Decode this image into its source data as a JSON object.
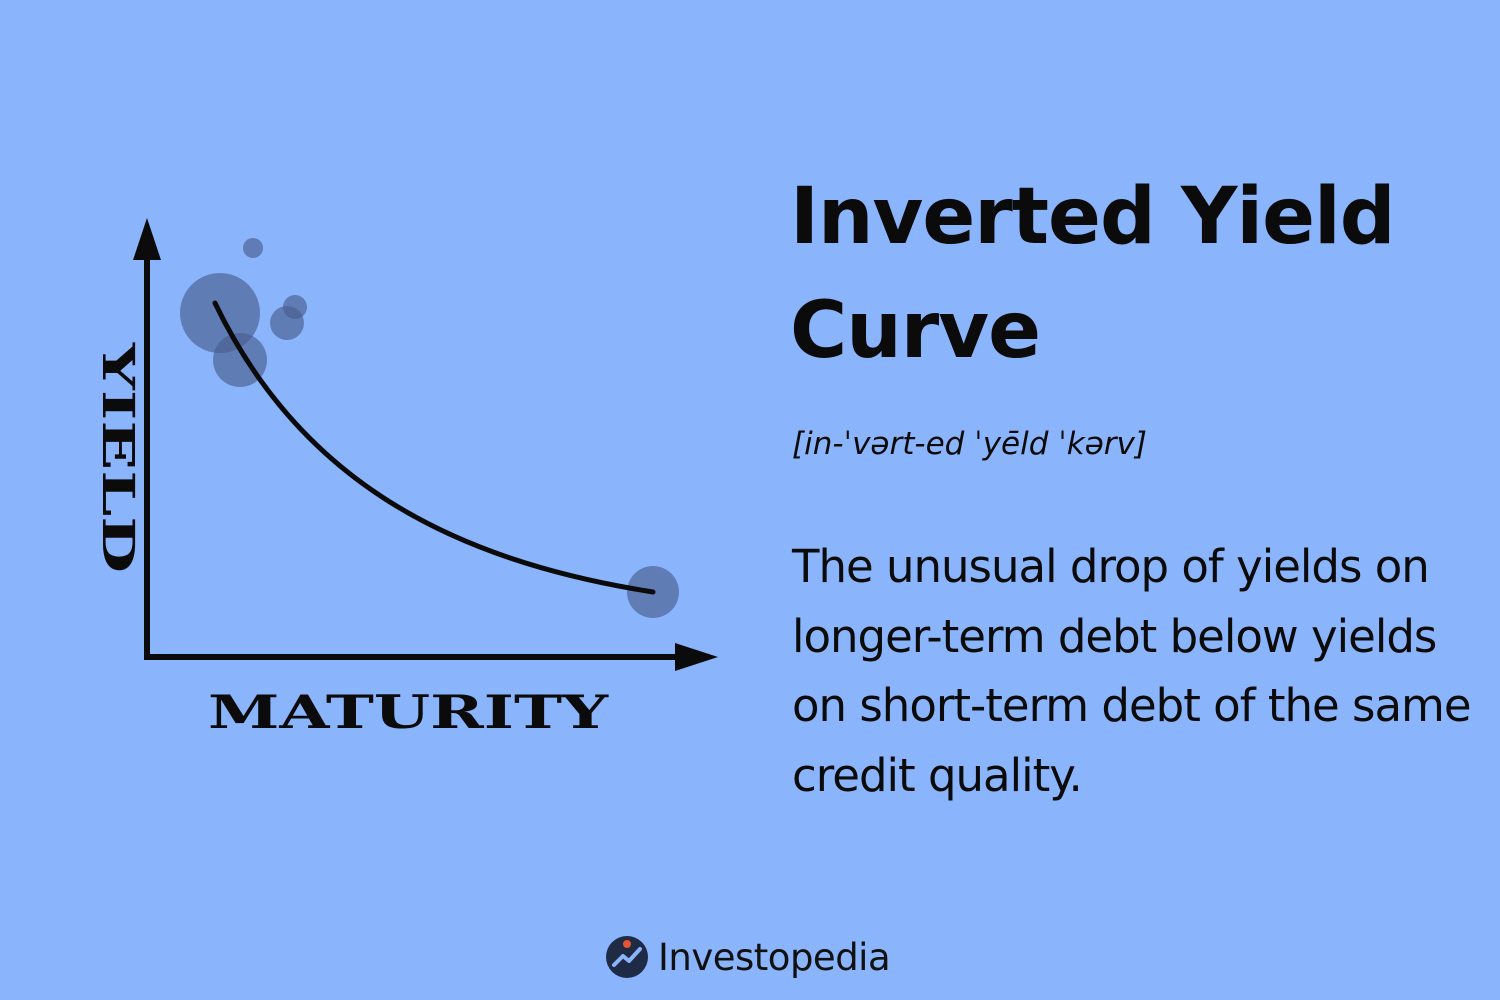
{
  "title": "Inverted Yield Curve",
  "pronunciation": "[in-ˈvərt-ed ˈyēld ˈkərv]",
  "definition": "The unusual drop of yields on longer-term debt below yields on short-term debt of the same credit quality.",
  "diagram": {
    "y_axis_label": "YIELD",
    "x_axis_label": "MATURITY"
  },
  "brand": {
    "name": "Investopedia",
    "icon": "investopedia-logo-icon"
  },
  "colors": {
    "background": "#8ab4fb",
    "ink": "#0b0b0b",
    "bubble": "#4a5e8f",
    "logo_dot": "#e8542f"
  }
}
